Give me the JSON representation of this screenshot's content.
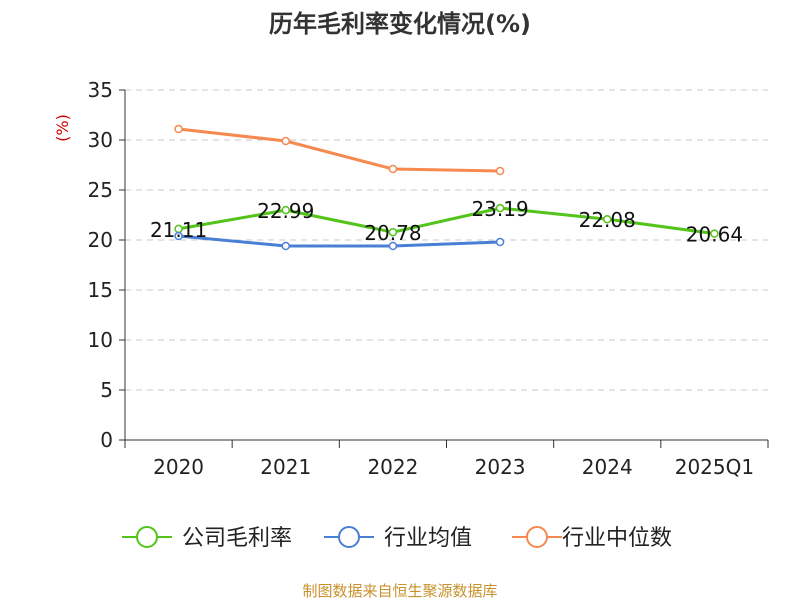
{
  "chart_data": {
    "type": "line",
    "title": "历年毛利率变化情况(%)",
    "ylabel": "(%)",
    "categories": [
      "2020",
      "2021",
      "2022",
      "2023",
      "2024",
      "2025Q1"
    ],
    "ylim": [
      0,
      35
    ],
    "yticks": [
      "0",
      "5",
      "10",
      "15",
      "20",
      "25",
      "30",
      "35"
    ],
    "grid": true,
    "legend_position": "bottom",
    "series": [
      {
        "name": "公司毛利率",
        "color": "#52c41a",
        "values": [
          21.11,
          22.99,
          20.78,
          23.19,
          22.08,
          20.64
        ],
        "labels": [
          "21.11",
          "22.99",
          "20.78",
          "23.19",
          "22.08",
          "20.64"
        ]
      },
      {
        "name": "行业均值",
        "color": "#4a7fd6",
        "values": [
          20.4,
          19.4,
          19.4,
          19.8,
          null,
          null
        ]
      },
      {
        "name": "行业中位数",
        "color": "#f5894f",
        "values": [
          31.1,
          29.9,
          27.1,
          26.9,
          null,
          null
        ]
      }
    ]
  },
  "source": "制图数据来自恒生聚源数据库"
}
